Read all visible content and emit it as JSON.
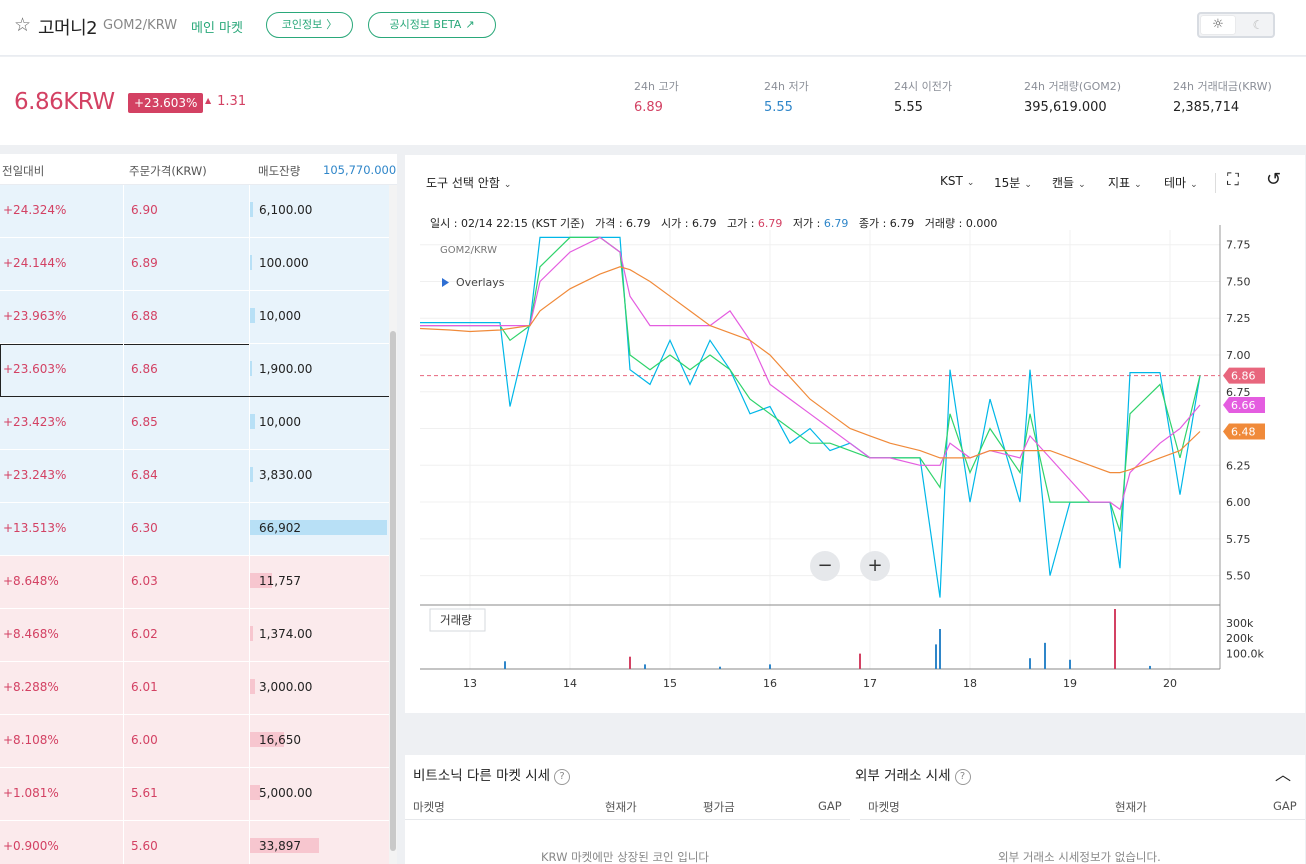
{
  "header": {
    "coin_name": "고머니2",
    "pair": "GOM2/KRW",
    "market": "메인 마켓",
    "coin_info_label": "코인정보",
    "disclosure_label": "공시정보 BETA"
  },
  "summary": {
    "price": "6.86KRW",
    "change_rate": "+23.603%",
    "change_amount": "1.31",
    "stats": [
      {
        "label": "24h 고가",
        "value": "6.89",
        "color": "#d34163"
      },
      {
        "label": "24h 저가",
        "value": "5.55",
        "color": "#2f86c9"
      },
      {
        "label": "24시 이전가",
        "value": "5.55",
        "color": "#222222"
      },
      {
        "label": "24h 거래량(GOM2)",
        "value": "395,619.000",
        "color": "#222222"
      },
      {
        "label": "24h 거래대금(KRW)",
        "value": "2,385,714",
        "color": "#222222"
      }
    ]
  },
  "orderbook": {
    "col_change": "전일대비",
    "col_price": "주문가격(KRW)",
    "col_volume": "매도잔량",
    "total_volume": "105,770.000",
    "rows": [
      {
        "side": "ask",
        "change": "+24.324%",
        "price": "6.90",
        "volume": "6,100.00",
        "fill": 0.02
      },
      {
        "side": "ask",
        "change": "+24.144%",
        "price": "6.89",
        "volume": "100.000",
        "fill": 0.0
      },
      {
        "side": "ask",
        "change": "+23.963%",
        "price": "6.88",
        "volume": "10,000",
        "fill": 0.04
      },
      {
        "side": "ask",
        "change": "+23.603%",
        "price": "6.86",
        "volume": "1,900.00",
        "fill": 0.01,
        "current": true
      },
      {
        "side": "ask",
        "change": "+23.423%",
        "price": "6.85",
        "volume": "10,000",
        "fill": 0.04
      },
      {
        "side": "ask",
        "change": "+23.243%",
        "price": "6.84",
        "volume": "3,830.00",
        "fill": 0.02
      },
      {
        "side": "ask",
        "change": "+13.513%",
        "price": "6.30",
        "volume": "66,902",
        "fill": 1.0
      },
      {
        "side": "bid",
        "change": "+8.648%",
        "price": "6.03",
        "volume": "11,757",
        "fill": 0.16
      },
      {
        "side": "bid",
        "change": "+8.468%",
        "price": "6.02",
        "volume": "1,374.00",
        "fill": 0.02
      },
      {
        "side": "bid",
        "change": "+8.288%",
        "price": "6.01",
        "volume": "3,000.00",
        "fill": 0.04
      },
      {
        "side": "bid",
        "change": "+8.108%",
        "price": "6.00",
        "volume": "16,650",
        "fill": 0.25
      },
      {
        "side": "bid",
        "change": "+1.081%",
        "price": "5.61",
        "volume": "5,000.00",
        "fill": 0.07
      },
      {
        "side": "bid",
        "change": "+0.900%",
        "price": "5.60",
        "volume": "33,897",
        "fill": 0.5
      }
    ]
  },
  "chart": {
    "tool_label": "도구 선택 안함",
    "toolbar": [
      "KST",
      "15분",
      "캔들",
      "지표",
      "테마"
    ],
    "legend": {
      "time_label": "일시 : 02/14 22:15 (KST 기준)",
      "price_label": "가격 : 6.79",
      "open_label": "시가 : 6.79",
      "high_label": "고가 : ",
      "high_value": "6.79",
      "low_label": "저가 : ",
      "low_value": "6.79",
      "close_label": "종가 : 6.79",
      "volume_label": "거래량 : 0.000"
    },
    "symbol": "GOM2/KRW",
    "overlays_label": "Overlays",
    "volume_pane_label": "거래량",
    "y_ticks": [
      "7.75",
      "7.50",
      "7.25",
      "7.00",
      "6.75",
      "6.50",
      "6.25",
      "6.00",
      "5.75",
      "5.50"
    ],
    "y_tick_values": [
      7.75,
      7.5,
      7.25,
      7.0,
      6.75,
      6.5,
      6.25,
      6.0,
      5.75,
      5.5
    ],
    "vol_ticks": [
      "300k",
      "200k",
      "100.0k"
    ],
    "vol_tick_values": [
      300000,
      200000,
      100000
    ],
    "x_ticks": [
      "13",
      "14",
      "15",
      "16",
      "17",
      "18",
      "19",
      "20"
    ],
    "price_badges": [
      {
        "label": "6.86",
        "value": 6.86,
        "color": "#e8667d"
      },
      {
        "label": "6.66",
        "value": 6.66,
        "color": "#e45de0"
      },
      {
        "label": "6.48",
        "value": 6.48,
        "color": "#f08a3a"
      }
    ],
    "zoom_out": "−",
    "zoom_in": "+"
  },
  "chart_data": {
    "type": "line",
    "x_unit": "day",
    "ylim": [
      5.3,
      7.85
    ],
    "x": [
      12.5,
      12.8,
      13.0,
      13.3,
      13.4,
      13.6,
      13.7,
      14.0,
      14.3,
      14.5,
      14.6,
      14.8,
      15.0,
      15.2,
      15.4,
      15.6,
      15.8,
      16.0,
      16.2,
      16.4,
      16.6,
      16.8,
      17.0,
      17.2,
      17.5,
      17.7,
      17.8,
      18.0,
      18.2,
      18.5,
      18.6,
      18.8,
      19.0,
      19.2,
      19.4,
      19.5,
      19.6,
      19.9,
      20.1,
      20.3
    ],
    "series": [
      {
        "color": "#00b7e8",
        "values": [
          7.22,
          7.22,
          7.22,
          7.22,
          6.65,
          7.22,
          7.8,
          7.8,
          7.8,
          7.8,
          6.9,
          6.8,
          7.1,
          6.8,
          7.1,
          6.9,
          6.6,
          6.65,
          6.4,
          6.5,
          6.35,
          6.4,
          6.3,
          6.3,
          6.3,
          5.35,
          6.9,
          6.0,
          6.7,
          6.0,
          6.9,
          5.5,
          6.0,
          6.0,
          6.0,
          5.55,
          6.88,
          6.88,
          6.05,
          6.86
        ]
      },
      {
        "color": "#2fd36b",
        "values": [
          7.2,
          7.2,
          7.2,
          7.2,
          7.1,
          7.2,
          7.6,
          7.8,
          7.8,
          7.7,
          7.0,
          6.9,
          7.0,
          6.9,
          7.0,
          6.9,
          6.7,
          6.6,
          6.5,
          6.4,
          6.4,
          6.35,
          6.3,
          6.3,
          6.3,
          6.1,
          6.6,
          6.2,
          6.5,
          6.2,
          6.6,
          6.0,
          6.0,
          6.0,
          6.0,
          5.8,
          6.6,
          6.8,
          6.3,
          6.86
        ]
      },
      {
        "color": "#e45de0",
        "values": [
          7.2,
          7.2,
          7.2,
          7.2,
          7.2,
          7.2,
          7.5,
          7.7,
          7.8,
          7.7,
          7.4,
          7.2,
          7.2,
          7.2,
          7.2,
          7.3,
          7.1,
          6.8,
          6.7,
          6.6,
          6.5,
          6.4,
          6.3,
          6.3,
          6.25,
          6.25,
          6.4,
          6.3,
          6.35,
          6.3,
          6.45,
          6.3,
          6.15,
          6.0,
          6.0,
          5.95,
          6.2,
          6.4,
          6.5,
          6.66
        ]
      },
      {
        "color": "#f08a3a",
        "values": [
          7.18,
          7.17,
          7.16,
          7.17,
          7.18,
          7.2,
          7.3,
          7.45,
          7.55,
          7.6,
          7.58,
          7.5,
          7.4,
          7.3,
          7.2,
          7.15,
          7.1,
          7.0,
          6.85,
          6.7,
          6.6,
          6.5,
          6.45,
          6.4,
          6.35,
          6.3,
          6.3,
          6.3,
          6.35,
          6.35,
          6.35,
          6.35,
          6.3,
          6.25,
          6.2,
          6.2,
          6.22,
          6.3,
          6.35,
          6.48
        ]
      }
    ],
    "volume": [
      {
        "x": 13.35,
        "v": 50000,
        "color": "#2f86c9"
      },
      {
        "x": 14.6,
        "v": 80000,
        "color": "#d34163"
      },
      {
        "x": 14.75,
        "v": 30000,
        "color": "#2f86c9"
      },
      {
        "x": 15.5,
        "v": 15000,
        "color": "#2f86c9"
      },
      {
        "x": 16.0,
        "v": 30000,
        "color": "#2f86c9"
      },
      {
        "x": 16.9,
        "v": 100000,
        "color": "#d34163"
      },
      {
        "x": 17.66,
        "v": 160000,
        "color": "#2f86c9"
      },
      {
        "x": 17.7,
        "v": 260000,
        "color": "#2f86c9"
      },
      {
        "x": 18.6,
        "v": 70000,
        "color": "#2f86c9"
      },
      {
        "x": 18.75,
        "v": 170000,
        "color": "#2f86c9"
      },
      {
        "x": 19.0,
        "v": 60000,
        "color": "#2f86c9"
      },
      {
        "x": 19.45,
        "v": 390000,
        "color": "#d34163"
      },
      {
        "x": 19.8,
        "v": 20000,
        "color": "#2f86c9"
      }
    ],
    "volume_max": 390000
  },
  "bottom": {
    "left_title": "비트소닉 다른 마켓 시세",
    "right_title": "외부 거래소 시세",
    "left_cols": [
      "마켓명",
      "현재가",
      "평가금",
      "GAP"
    ],
    "right_cols": [
      "마켓명",
      "현재가",
      "GAP"
    ],
    "left_empty": "KRW 마켓에만 상장된 코인 입니다",
    "right_empty": "외부 거래소 시세정보가 없습니다."
  }
}
